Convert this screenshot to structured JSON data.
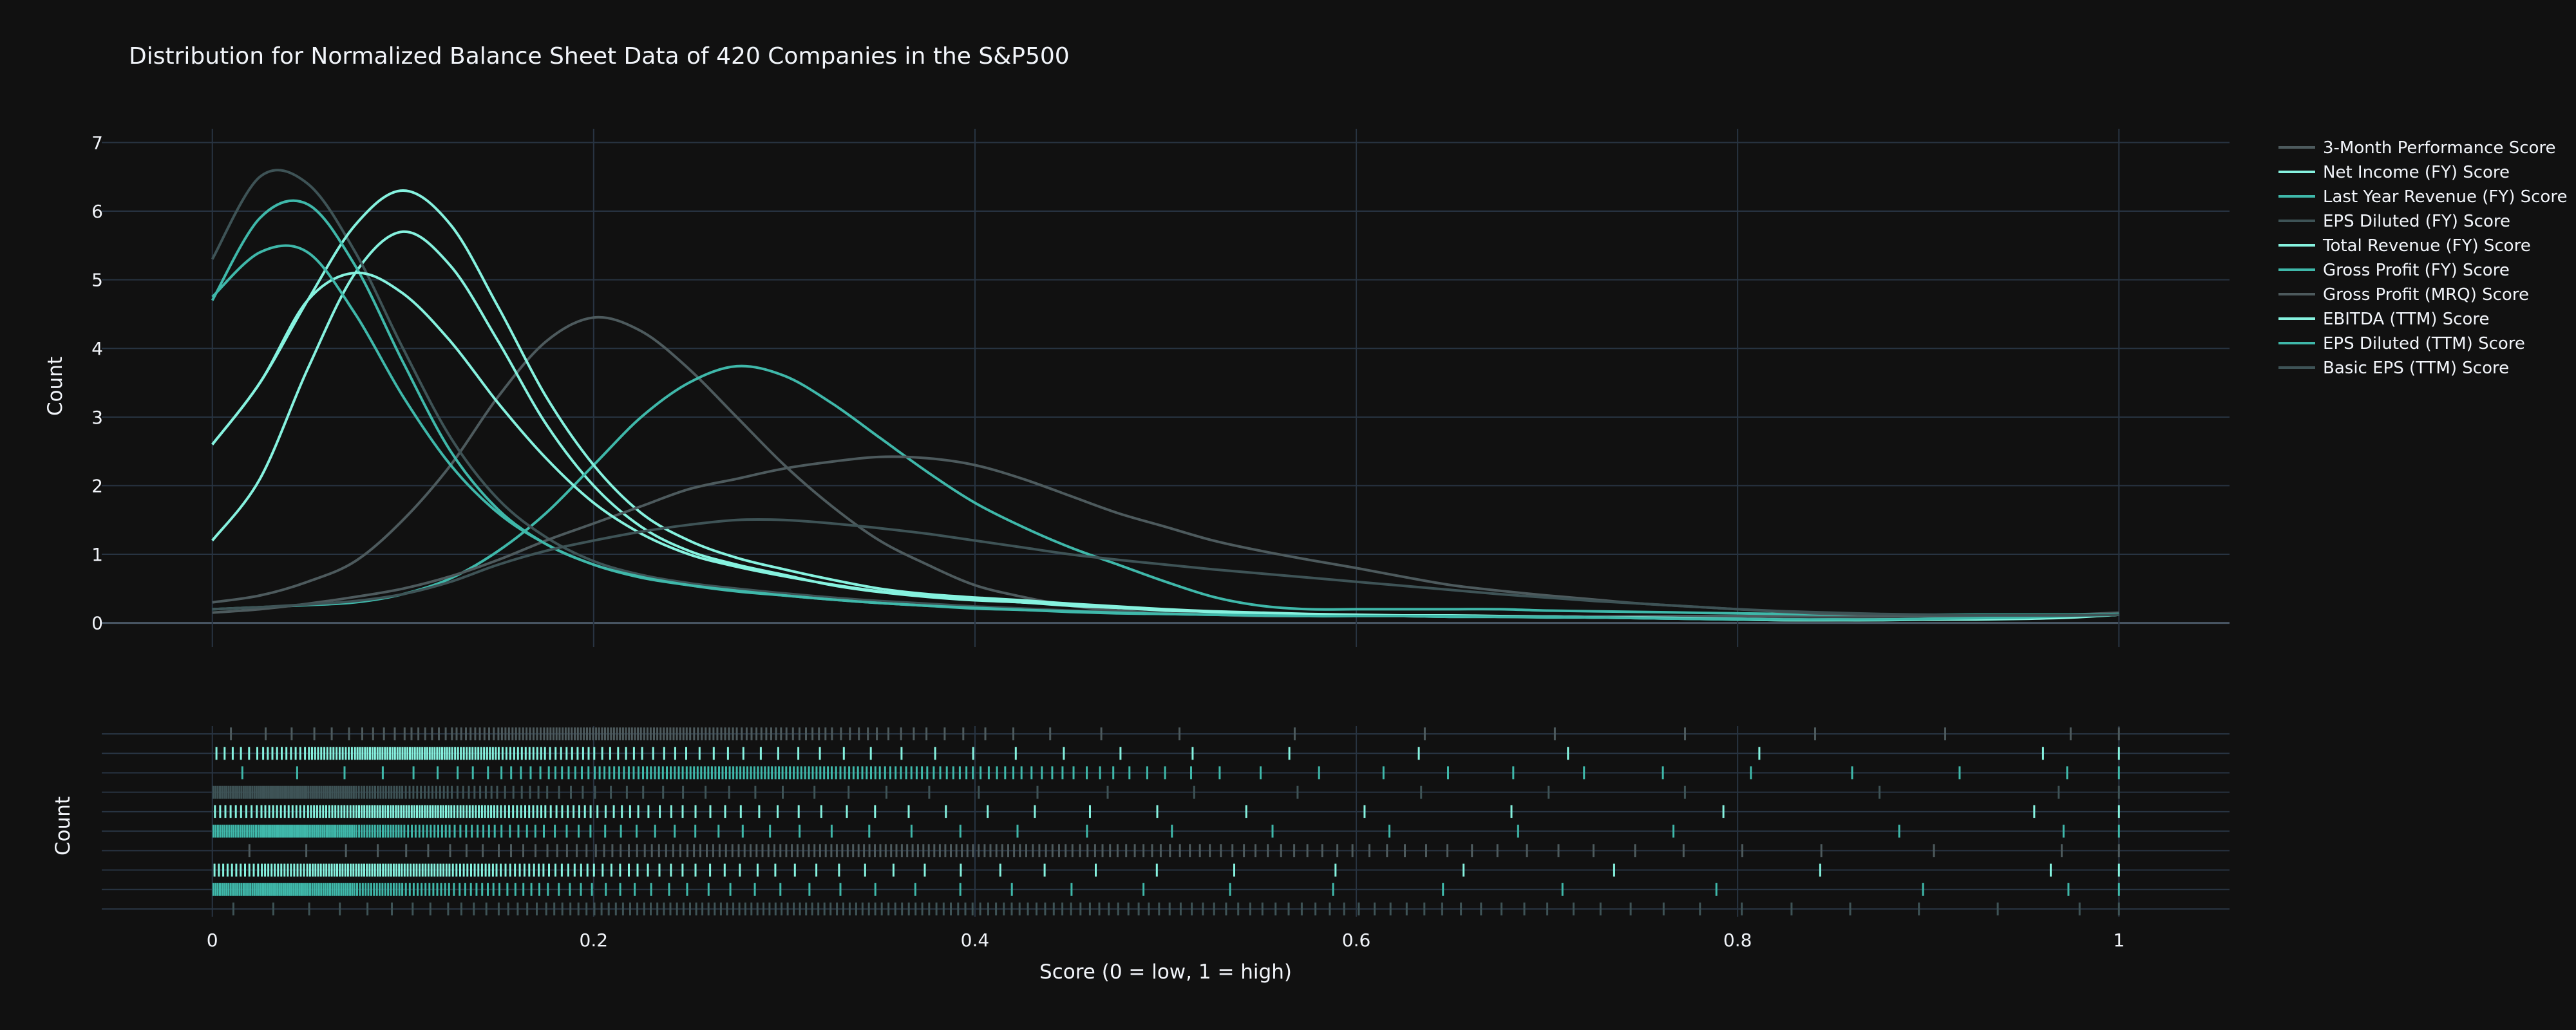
{
  "colors": {
    "background": "#111111",
    "grid": "#283442",
    "text": "#f2f5fa",
    "palette": [
      "#4d5a5d",
      "#86f2df",
      "#3fb8aa",
      "#3e5356",
      "#86f2df",
      "#3fb8aa",
      "#4d5a5d",
      "#86f2df",
      "#3fb8aa",
      "#3e5356"
    ]
  },
  "chart_data": {
    "type": "line",
    "title": "Distribution for Normalized Balance Sheet Data of 420 Companies in the S&P500",
    "xlabel": "Score (0 = low, 1 = high)",
    "ylabel": "Count",
    "rug_ylabel": "Count",
    "xlim": [
      -0.058,
      1.058
    ],
    "ylim": [
      -0.35,
      7.2
    ],
    "x_ticks": [
      0,
      0.2,
      0.4,
      0.6,
      0.8,
      1
    ],
    "x_tick_labels": [
      "0",
      "0.2",
      "0.4",
      "0.6",
      "0.8",
      "1"
    ],
    "y_ticks": [
      0,
      1,
      2,
      3,
      4,
      5,
      6,
      7
    ],
    "y_tick_labels": [
      "0",
      "1",
      "2",
      "3",
      "4",
      "5",
      "6",
      "7"
    ],
    "grid": true,
    "legend_placement": "top-right",
    "x": [
      0,
      0.025,
      0.05,
      0.075,
      0.1,
      0.125,
      0.15,
      0.175,
      0.2,
      0.225,
      0.25,
      0.275,
      0.3,
      0.325,
      0.35,
      0.375,
      0.4,
      0.425,
      0.45,
      0.475,
      0.5,
      0.525,
      0.55,
      0.575,
      0.6,
      0.625,
      0.65,
      0.675,
      0.7,
      0.725,
      0.75,
      0.775,
      0.8,
      0.825,
      0.85,
      0.875,
      0.9,
      0.925,
      0.95,
      0.975,
      1
    ],
    "series": [
      {
        "name": "3-Month Performance Score",
        "values": [
          0.3,
          0.4,
          0.6,
          0.9,
          1.5,
          2.3,
          3.3,
          4.1,
          4.45,
          4.25,
          3.7,
          3.0,
          2.3,
          1.7,
          1.2,
          0.85,
          0.55,
          0.38,
          0.25,
          0.18,
          0.14,
          0.12,
          0.1,
          0.1,
          0.1,
          0.1,
          0.1,
          0.1,
          0.1,
          0.1,
          0.1,
          0.1,
          0.1,
          0.1,
          0.1,
          0.1,
          0.1,
          0.1,
          0.1,
          0.12,
          0.15
        ]
      },
      {
        "name": "Net Income (FY) Score",
        "values": [
          1.2,
          2.1,
          3.7,
          5.1,
          5.7,
          5.2,
          4.1,
          2.9,
          2.0,
          1.4,
          1.05,
          0.85,
          0.7,
          0.55,
          0.45,
          0.38,
          0.33,
          0.3,
          0.25,
          0.22,
          0.18,
          0.15,
          0.13,
          0.11,
          0.1,
          0.1,
          0.09,
          0.09,
          0.09,
          0.08,
          0.08,
          0.07,
          0.05,
          0.04,
          0.04,
          0.04,
          0.05,
          0.05,
          0.06,
          0.08,
          0.12
        ]
      },
      {
        "name": "Last Year Revenue (FY) Score",
        "values": [
          0.2,
          0.23,
          0.26,
          0.3,
          0.42,
          0.65,
          1.05,
          1.6,
          2.3,
          3.0,
          3.5,
          3.74,
          3.6,
          3.2,
          2.7,
          2.2,
          1.75,
          1.4,
          1.1,
          0.85,
          0.6,
          0.38,
          0.25,
          0.2,
          0.2,
          0.2,
          0.2,
          0.2,
          0.18,
          0.17,
          0.16,
          0.15,
          0.14,
          0.13,
          0.12,
          0.12,
          0.12,
          0.12,
          0.12,
          0.12,
          0.13
        ]
      },
      {
        "name": "EPS Diluted (FY) Score",
        "values": [
          5.3,
          6.5,
          6.4,
          5.4,
          4.0,
          2.7,
          1.8,
          1.25,
          0.9,
          0.7,
          0.58,
          0.5,
          0.43,
          0.37,
          0.32,
          0.28,
          0.24,
          0.21,
          0.18,
          0.16,
          0.14,
          0.13,
          0.12,
          0.11,
          0.1,
          0.1,
          0.1,
          0.1,
          0.1,
          0.1,
          0.09,
          0.08,
          0.07,
          0.06,
          0.06,
          0.06,
          0.06,
          0.07,
          0.08,
          0.1,
          0.12
        ]
      },
      {
        "name": "Total Revenue (FY) Score",
        "values": [
          2.6,
          3.5,
          4.7,
          5.8,
          6.3,
          5.8,
          4.6,
          3.3,
          2.3,
          1.6,
          1.2,
          0.95,
          0.78,
          0.63,
          0.5,
          0.42,
          0.37,
          0.33,
          0.28,
          0.24,
          0.2,
          0.17,
          0.15,
          0.13,
          0.12,
          0.11,
          0.11,
          0.1,
          0.09,
          0.08,
          0.07,
          0.06,
          0.05,
          0.04,
          0.04,
          0.05,
          0.05,
          0.06,
          0.07,
          0.09,
          0.12
        ]
      },
      {
        "name": "Gross Profit (FY) Score",
        "values": [
          4.7,
          5.9,
          6.1,
          5.2,
          3.8,
          2.5,
          1.65,
          1.15,
          0.85,
          0.66,
          0.55,
          0.47,
          0.4,
          0.34,
          0.29,
          0.25,
          0.21,
          0.19,
          0.16,
          0.14,
          0.13,
          0.12,
          0.11,
          0.1,
          0.1,
          0.1,
          0.09,
          0.09,
          0.08,
          0.08,
          0.07,
          0.06,
          0.05,
          0.05,
          0.05,
          0.05,
          0.06,
          0.07,
          0.08,
          0.1,
          0.12
        ]
      },
      {
        "name": "Gross Profit (MRQ) Score",
        "values": [
          0.15,
          0.2,
          0.28,
          0.38,
          0.5,
          0.68,
          0.92,
          1.2,
          1.45,
          1.7,
          1.95,
          2.1,
          2.25,
          2.35,
          2.42,
          2.4,
          2.3,
          2.1,
          1.85,
          1.6,
          1.4,
          1.2,
          1.05,
          0.92,
          0.8,
          0.67,
          0.55,
          0.47,
          0.4,
          0.34,
          0.28,
          0.24,
          0.2,
          0.16,
          0.13,
          0.11,
          0.1,
          0.1,
          0.1,
          0.11,
          0.12
        ]
      },
      {
        "name": "EBITDA (TTM) Score",
        "values": [
          2.6,
          3.5,
          4.7,
          5.1,
          4.8,
          4.1,
          3.2,
          2.4,
          1.75,
          1.3,
          1.0,
          0.82,
          0.68,
          0.56,
          0.46,
          0.39,
          0.34,
          0.3,
          0.26,
          0.22,
          0.19,
          0.16,
          0.14,
          0.12,
          0.11,
          0.1,
          0.1,
          0.09,
          0.09,
          0.08,
          0.08,
          0.07,
          0.06,
          0.05,
          0.05,
          0.05,
          0.05,
          0.06,
          0.07,
          0.09,
          0.12
        ]
      },
      {
        "name": "EPS Diluted (TTM) Score",
        "values": [
          4.75,
          5.4,
          5.4,
          4.5,
          3.3,
          2.3,
          1.6,
          1.15,
          0.85,
          0.67,
          0.55,
          0.46,
          0.4,
          0.34,
          0.29,
          0.25,
          0.22,
          0.19,
          0.17,
          0.15,
          0.13,
          0.12,
          0.11,
          0.1,
          0.1,
          0.1,
          0.1,
          0.09,
          0.09,
          0.08,
          0.07,
          0.06,
          0.06,
          0.05,
          0.05,
          0.05,
          0.06,
          0.07,
          0.08,
          0.1,
          0.12
        ]
      },
      {
        "name": "Basic EPS (TTM) Score",
        "values": [
          0.2,
          0.23,
          0.27,
          0.32,
          0.42,
          0.6,
          0.85,
          1.05,
          1.2,
          1.33,
          1.43,
          1.5,
          1.5,
          1.45,
          1.38,
          1.3,
          1.2,
          1.1,
          1.0,
          0.92,
          0.85,
          0.78,
          0.72,
          0.66,
          0.6,
          0.54,
          0.48,
          0.42,
          0.37,
          0.32,
          0.28,
          0.24,
          0.2,
          0.17,
          0.15,
          0.13,
          0.12,
          0.11,
          0.11,
          0.11,
          0.12
        ]
      }
    ]
  }
}
